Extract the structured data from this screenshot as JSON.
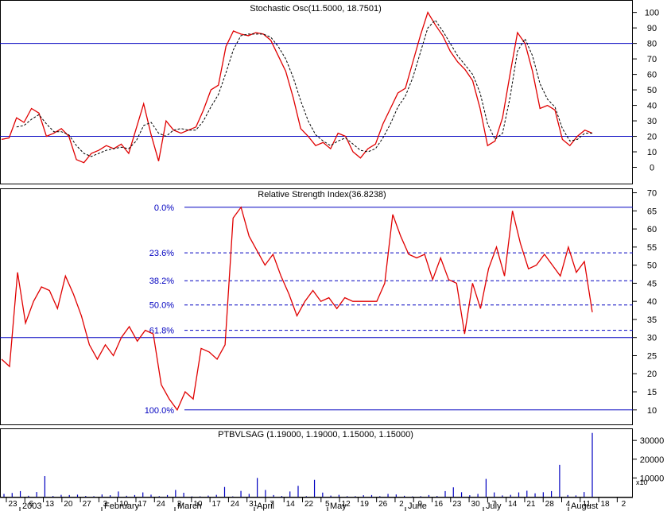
{
  "chart_data": [
    {
      "type": "line",
      "title": "Stochastic Osc(11.5000, 18.7501)",
      "ylim": [
        -10,
        107
      ],
      "y_ticks": [
        0,
        10,
        20,
        30,
        40,
        50,
        60,
        70,
        80,
        90,
        100
      ],
      "reference_lines": [
        80,
        20
      ],
      "colors": {
        "k": "#e00000",
        "d": "#000000",
        "ref": "#0000c0"
      },
      "series": [
        {
          "values": [
            18,
            19,
            32,
            29,
            38,
            35,
            20,
            22,
            25,
            20,
            5,
            3,
            9,
            11,
            14,
            12,
            15,
            9,
            25,
            41,
            21,
            4,
            30,
            24,
            22,
            24,
            26,
            37,
            50,
            53,
            78,
            88,
            86,
            85,
            87,
            86,
            82,
            72,
            62,
            45,
            25,
            20,
            14,
            16,
            12,
            22,
            20,
            10,
            6,
            12,
            15,
            28,
            38,
            48,
            51,
            68,
            85,
            100,
            92,
            85,
            75,
            68,
            63,
            56,
            38,
            14,
            17,
            32,
            60,
            87,
            80,
            62,
            38,
            40,
            37,
            18,
            14,
            20,
            24,
            22
          ]
        },
        {
          "values": [
            null,
            null,
            26,
            27,
            31,
            34,
            28,
            23,
            23,
            21,
            14,
            9,
            7,
            9,
            11,
            12,
            13,
            12,
            17,
            27,
            29,
            22,
            20,
            24,
            25,
            24,
            24,
            30,
            39,
            47,
            61,
            76,
            85,
            86,
            86,
            86,
            84,
            78,
            70,
            58,
            43,
            30,
            21,
            17,
            14,
            17,
            19,
            15,
            11,
            10,
            12,
            19,
            28,
            39,
            46,
            58,
            74,
            90,
            95,
            88,
            80,
            72,
            66,
            60,
            48,
            28,
            18,
            22,
            45,
            75,
            83,
            72,
            54,
            44,
            39,
            25,
            17,
            18,
            22,
            22
          ]
        }
      ]
    },
    {
      "type": "line",
      "title": "Relative Strength Index(36.8238)",
      "ylim": [
        6,
        71
      ],
      "y_ticks": [
        10,
        15,
        20,
        25,
        30,
        35,
        40,
        45,
        50,
        55,
        60,
        65,
        70
      ],
      "fib_levels": [
        {
          "label": "0.0%",
          "value": 66
        },
        {
          "label": "23.6%",
          "value": 53.4
        },
        {
          "label": "38.2%",
          "value": 45.7
        },
        {
          "label": "50.0%",
          "value": 39.0
        },
        {
          "label": "61.8%",
          "value": 32.0
        },
        {
          "label": "100.0%",
          "value": 10
        }
      ],
      "reference_lines": [
        30
      ],
      "colors": {
        "line": "#e00000",
        "fib": "#0000c0"
      },
      "series": [
        {
          "values": [
            24,
            22,
            48,
            34,
            40,
            44,
            43,
            38,
            47,
            42,
            36,
            28,
            24,
            28,
            25,
            30,
            33,
            29,
            32,
            31,
            17,
            13,
            10,
            15,
            13,
            27,
            26,
            24,
            28,
            63,
            66,
            58,
            54,
            50,
            53,
            47,
            42,
            36,
            40,
            43,
            40,
            41,
            38,
            41,
            40,
            40,
            40,
            40,
            45,
            64,
            58,
            53,
            52,
            53,
            46,
            52,
            46,
            45,
            31,
            45,
            38,
            49,
            55,
            47,
            65,
            56,
            49,
            50,
            53,
            50,
            47,
            55,
            48,
            51,
            37
          ]
        }
      ]
    },
    {
      "type": "bar",
      "title": "PTBVLSAG (1.19000, 1.19000, 1.15000, 1.15000)",
      "ylim": [
        0,
        36000
      ],
      "y_ticks": [
        10000,
        20000,
        30000
      ],
      "y_unit_label": "x10",
      "colors": {
        "bar": "#0000c0"
      },
      "values": [
        1500,
        2000,
        3000,
        500,
        2500,
        11000,
        400,
        1000,
        900,
        1100,
        400,
        300,
        1200,
        800,
        2800,
        500,
        900,
        2300,
        1100,
        300,
        900,
        3600,
        2100,
        200,
        200,
        600,
        1000,
        5200,
        200,
        3100,
        1500,
        10000,
        3600,
        900,
        400,
        2800,
        5800,
        300,
        9000,
        2200,
        600,
        1000,
        300,
        300,
        800,
        900,
        300,
        1500,
        1200,
        500,
        200,
        300,
        900,
        400,
        3000,
        5000,
        2400,
        800,
        1500,
        9500,
        2300,
        700,
        1000,
        2300,
        3200,
        1800,
        2400,
        3000,
        17000,
        900,
        700,
        2500,
        34000
      ],
      "x_tick_labels": [
        "23",
        "6",
        "13",
        "20",
        "27",
        "3",
        "10",
        "17",
        "24",
        "3",
        "10",
        "17",
        "24",
        "31",
        "7",
        "14",
        "22",
        "5",
        "12",
        "19",
        "26",
        "2",
        "9",
        "16",
        "23",
        "30",
        "7",
        "14",
        "21",
        "28",
        "4",
        "11",
        "18",
        "2"
      ],
      "month_labels": [
        "2003",
        "February",
        "March",
        "April",
        "May",
        "June",
        "July",
        "August"
      ]
    }
  ]
}
